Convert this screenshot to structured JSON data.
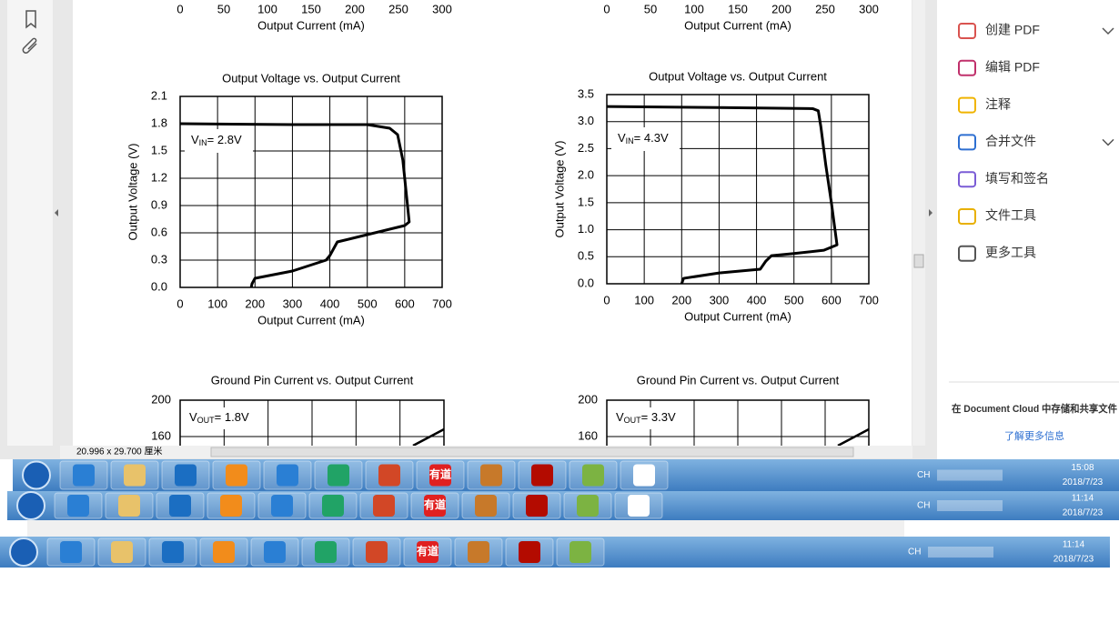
{
  "document": {
    "top_axes": [
      {
        "xticks": [
          0,
          50,
          100,
          150,
          200,
          250,
          300
        ],
        "xlabel": "Output Current (mA)"
      },
      {
        "xticks": [
          0,
          50,
          100,
          150,
          200,
          250,
          300
        ],
        "xlabel": "Output Current (mA)"
      }
    ],
    "charts": [
      {
        "title": "Output Voltage vs. Output Current",
        "ylabel": "Output Voltage (V)",
        "xlabel": "Output Current (mA)",
        "annotation": {
          "main": "V",
          "sub": "IN",
          "rest": "= 2.8V"
        },
        "xlim": [
          0,
          700
        ],
        "xticks": [
          0,
          100,
          200,
          300,
          400,
          500,
          600,
          700
        ],
        "ylim": [
          0,
          2.1
        ],
        "yticks": [
          {
            "value": 0,
            "label": "0.0"
          },
          0.3,
          0.6,
          0.9,
          1.2,
          1.5,
          1.8,
          2.1
        ],
        "curve": {
          "x": [
            0,
            300,
            500,
            560,
            581,
            595,
            605,
            612,
            600,
            500,
            420,
            400,
            390,
            300,
            200,
            192,
            190
          ],
          "y": [
            1.8,
            1.79,
            1.79,
            1.75,
            1.68,
            1.4,
            1.0,
            0.72,
            0.68,
            0.58,
            0.5,
            0.35,
            0.3,
            0.18,
            0.1,
            0.04,
            0
          ]
        }
      },
      {
        "title": "Output Voltage vs. Output Current",
        "ylabel": "Output Voltage (V)",
        "xlabel": "Output Current (mA)",
        "annotation": {
          "main": "V",
          "sub": "IN",
          "rest": "= 4.3V"
        },
        "xlim": [
          0,
          700
        ],
        "xticks": [
          0,
          100,
          200,
          300,
          400,
          500,
          600,
          700
        ],
        "ylim": [
          0,
          3.5
        ],
        "yticks": [
          {
            "value": 0,
            "label": "0.0"
          },
          0.5,
          {
            "value": 1,
            "label": "1.0"
          },
          1.5,
          {
            "value": 2,
            "label": "2.0"
          },
          2.5,
          {
            "value": 3,
            "label": "3.0"
          },
          3.5
        ],
        "curve": {
          "x": [
            0,
            300,
            550,
            565,
            572,
            585,
            600,
            615,
            580,
            500,
            440,
            425,
            410,
            300,
            205,
            200
          ],
          "y": [
            3.28,
            3.26,
            3.24,
            3.2,
            2.9,
            2.2,
            1.5,
            0.72,
            0.62,
            0.56,
            0.52,
            0.42,
            0.27,
            0.2,
            0.1,
            0
          ]
        }
      }
    ],
    "lower_charts": [
      {
        "title": "Ground Pin Current vs. Output Current",
        "annotation": {
          "main": "V",
          "sub": "OUT",
          "rest": "= 1.8V"
        },
        "yticks": [
          200,
          160
        ]
      },
      {
        "title": "Ground Pin Current vs. Output Current",
        "annotation": {
          "main": "V",
          "sub": "OUT",
          "rest": "= 3.3V"
        },
        "yticks": [
          200,
          160
        ]
      }
    ],
    "page_size": "20.996 x 29.700 厘米"
  },
  "right_panel": {
    "tools": [
      "创建 PDF",
      "编辑 PDF",
      "注释",
      "合并文件",
      "填写和签名",
      "文件工具",
      "更多工具"
    ],
    "cloud_text": "在 Document Cloud 中存储和共享文件",
    "cloud_link": "了解更多信息"
  },
  "taskbars": [
    {
      "youdao": "有道",
      "lang": "CH",
      "time": "15:08",
      "date": "2018/7/23"
    },
    {
      "youdao": "有道",
      "lang": "CH",
      "time": "11:14",
      "date": "2018/7/23"
    },
    {
      "youdao": "有道",
      "lang": "CH",
      "time": "11:14",
      "date": "2018/7/23"
    }
  ]
}
